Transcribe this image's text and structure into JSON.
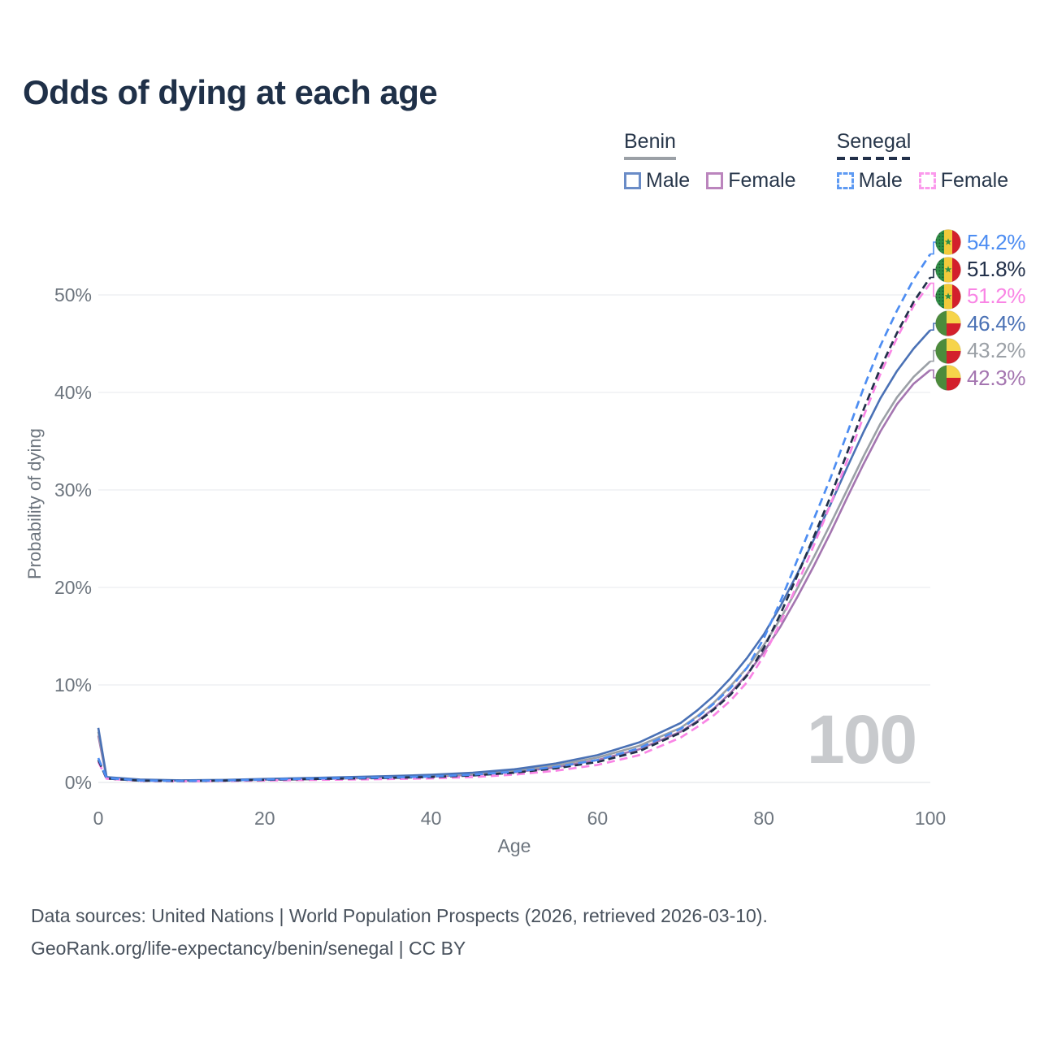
{
  "title": "Odds of dying at each age",
  "legend": {
    "groups": [
      {
        "label": "Benin",
        "line_style": "solid",
        "underline_color": "#9ba0a6",
        "items": [
          {
            "label": "Male",
            "color": "#4a71b5"
          },
          {
            "label": "Female",
            "color": "#a475b0"
          }
        ]
      },
      {
        "label": "Senegal",
        "line_style": "dashed",
        "underline_color": "#22304a",
        "items": [
          {
            "label": "Male",
            "color": "#4d8df2"
          },
          {
            "label": "Female",
            "color": "#f985e5"
          }
        ]
      }
    ]
  },
  "axes": {
    "y": {
      "title": "Probability of dying",
      "tick_labels": [
        "0%",
        "10%",
        "20%",
        "30%",
        "40%",
        "50%"
      ],
      "tick_values": [
        0,
        10,
        20,
        30,
        40,
        50
      ]
    },
    "x": {
      "title": "Age",
      "tick_labels": [
        "0",
        "20",
        "40",
        "60",
        "80",
        "100"
      ],
      "tick_values": [
        0,
        20,
        40,
        60,
        80,
        100
      ]
    }
  },
  "watermark_age": "100",
  "footer": {
    "line1": "Data sources: United Nations | World Population Prospects (2026, retrieved 2026-03-10).",
    "line2": "GeoRank.org/life-expectancy/benin/senegal | CC BY"
  },
  "colors": {
    "title": "#1f3048",
    "axis_text": "#6d757e",
    "gridline": "#ecedf0",
    "zero_line": "#e3e6ea",
    "benin_male": "#4a71b5",
    "benin_both": "#9ba0a6",
    "benin_female": "#a475b0",
    "senegal_male": "#4d8df2",
    "senegal_both": "#22304a",
    "senegal_female": "#f985e5"
  },
  "chart_data": {
    "type": "line",
    "xlabel": "Age",
    "ylabel": "Probability of dying",
    "xlim": [
      0,
      100
    ],
    "ylim_percent": [
      0,
      56
    ],
    "grid": "horizontal",
    "x_ages": [
      0,
      1,
      5,
      10,
      15,
      20,
      25,
      30,
      35,
      40,
      45,
      50,
      55,
      60,
      65,
      70,
      72,
      74,
      76,
      78,
      80,
      82,
      84,
      86,
      88,
      90,
      92,
      94,
      96,
      98,
      100
    ],
    "series": [
      {
        "name": "Senegal Male",
        "country": "Senegal",
        "sex": "male",
        "color": "#4d8df2",
        "dash": true,
        "flag": "senegal-flag-icon",
        "end_label": "54.2%",
        "values_percent": [
          2.5,
          0.45,
          0.2,
          0.15,
          0.2,
          0.3,
          0.38,
          0.45,
          0.52,
          0.62,
          0.8,
          1.1,
          1.6,
          2.3,
          3.5,
          5.5,
          6.7,
          8.1,
          9.7,
          11.8,
          14.8,
          18.6,
          22.8,
          27.0,
          31.2,
          35.8,
          40.5,
          44.8,
          48.4,
          51.6,
          54.2
        ]
      },
      {
        "name": "Senegal Both sexes",
        "country": "Senegal",
        "sex": "both",
        "color": "#22304a",
        "dash": true,
        "flag": "senegal-flag-icon",
        "end_label": "51.8%",
        "values_percent": [
          2.3,
          0.4,
          0.18,
          0.14,
          0.18,
          0.27,
          0.34,
          0.4,
          0.47,
          0.56,
          0.72,
          1.0,
          1.45,
          2.1,
          3.2,
          5.1,
          6.2,
          7.5,
          9.0,
          11.0,
          13.8,
          17.3,
          21.2,
          25.2,
          29.3,
          33.8,
          38.3,
          42.5,
          46.1,
          49.3,
          51.8
        ]
      },
      {
        "name": "Senegal Female",
        "country": "Senegal",
        "sex": "female",
        "color": "#f985e5",
        "dash": true,
        "flag": "senegal-flag-icon",
        "end_label": "51.2%",
        "values_percent": [
          2.1,
          0.38,
          0.16,
          0.12,
          0.15,
          0.2,
          0.25,
          0.3,
          0.35,
          0.42,
          0.55,
          0.8,
          1.2,
          1.8,
          2.8,
          4.6,
          5.7,
          6.9,
          8.4,
          10.3,
          13.0,
          16.4,
          20.3,
          24.3,
          28.5,
          33.0,
          37.6,
          41.9,
          45.6,
          48.9,
          51.2
        ]
      },
      {
        "name": "Benin Male",
        "country": "Benin",
        "sex": "male",
        "color": "#4a71b5",
        "dash": false,
        "flag": "benin-flag-icon",
        "end_label": "46.4%",
        "values_percent": [
          5.6,
          0.55,
          0.3,
          0.22,
          0.26,
          0.36,
          0.45,
          0.55,
          0.65,
          0.78,
          1.0,
          1.35,
          1.95,
          2.8,
          4.1,
          6.1,
          7.4,
          8.9,
          10.7,
          12.8,
          15.2,
          18.1,
          21.4,
          24.9,
          28.5,
          32.3,
          36.0,
          39.4,
          42.2,
          44.5,
          46.4
        ]
      },
      {
        "name": "Benin Both sexes",
        "country": "Benin",
        "sex": "both",
        "color": "#9ba0a6",
        "dash": false,
        "flag": "benin-flag-icon",
        "end_label": "43.2%",
        "values_percent": [
          5.2,
          0.5,
          0.27,
          0.2,
          0.23,
          0.31,
          0.39,
          0.47,
          0.56,
          0.68,
          0.88,
          1.2,
          1.75,
          2.55,
          3.75,
          5.6,
          6.8,
          8.2,
          9.9,
          11.8,
          14.1,
          16.8,
          19.9,
          23.1,
          26.5,
          30.0,
          33.5,
          36.8,
          39.5,
          41.6,
          43.2
        ]
      },
      {
        "name": "Benin Female",
        "country": "Benin",
        "sex": "female",
        "color": "#a475b0",
        "dash": false,
        "flag": "benin-flag-icon",
        "end_label": "42.3%",
        "values_percent": [
          4.8,
          0.45,
          0.25,
          0.18,
          0.2,
          0.27,
          0.34,
          0.41,
          0.49,
          0.6,
          0.78,
          1.05,
          1.55,
          2.3,
          3.4,
          5.2,
          6.3,
          7.6,
          9.2,
          11.1,
          13.4,
          16.0,
          19.0,
          22.2,
          25.6,
          29.2,
          32.7,
          36.0,
          38.8,
          40.9,
          42.3
        ]
      }
    ]
  }
}
